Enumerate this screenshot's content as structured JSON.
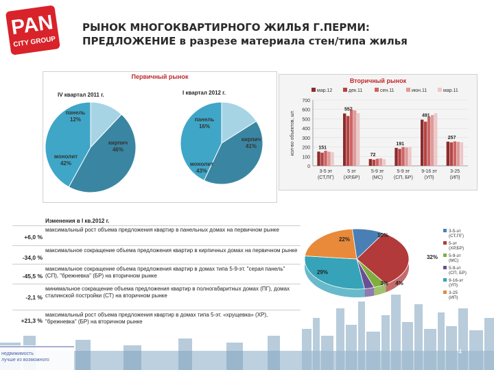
{
  "logo": {
    "line1": "PAN",
    "line2": "CITY GROUP"
  },
  "title": {
    "line1": "РЫНОК МНОГОКВАРТИРНОГО ЖИЛЬЯ Г.ПЕРМИ:",
    "line2": "ПРЕДЛОЖЕНИЕ в разрезе материала стен/типа жилья"
  },
  "primary": {
    "title": "Первичный рынок",
    "colors": {
      "brick": "#3a86a2",
      "monolith": "#3fa6c8",
      "panel": "#a7d4e4"
    }
  },
  "secondary": {
    "title": "Вторичный рынок",
    "ylabel": "кол-во объектов, шт."
  },
  "chart_data": [
    {
      "type": "pie",
      "title": "IV квартал 2011 г.",
      "slices": [
        {
          "label": "панель",
          "value": 12,
          "display": "12%"
        },
        {
          "label": "кирпич",
          "value": 46,
          "display": "46%"
        },
        {
          "label": "монолит",
          "value": 42,
          "display": "42%"
        }
      ]
    },
    {
      "type": "pie",
      "title": "I квартал 2012 г.",
      "slices": [
        {
          "label": "панель",
          "value": 16,
          "display": "16%"
        },
        {
          "label": "кирпич",
          "value": 41,
          "display": "41%"
        },
        {
          "label": "монолит",
          "value": 43,
          "display": "43%"
        }
      ]
    },
    {
      "type": "bar",
      "title": "Вторичный рынок",
      "ylabel": "кол-во объектов, шт.",
      "ylim": [
        0,
        700
      ],
      "yticks": [
        0,
        100,
        200,
        300,
        400,
        500,
        600,
        700
      ],
      "categories": [
        "3-5 эт (СТ,ПГ)",
        "5 эт (ХР,БР)",
        "5-9 эт (МС)",
        "5-9 эт (СП, БР)",
        "9-16 эт (УП)",
        "3-25 (ИП)"
      ],
      "category_lines": [
        [
          "3-5 эт",
          "(СТ,ПГ)"
        ],
        [
          "5 эт",
          "(ХР,БР)"
        ],
        [
          "5-9 эт",
          "(МС)"
        ],
        [
          "5-9 эт",
          "(СП, БР)"
        ],
        [
          "9-16 эт",
          "(УП)"
        ],
        [
          "3-25",
          "(ИП)"
        ]
      ],
      "series": [
        {
          "name": "мар.12",
          "color": "#8e2b2b",
          "values": [
            151,
            557,
            72,
            191,
            491,
            257
          ]
        },
        {
          "name": "дек.11",
          "color": "#b44444",
          "values": [
            140,
            530,
            65,
            180,
            470,
            250
          ]
        },
        {
          "name": "сен.11",
          "color": "#cf6464",
          "values": [
            160,
            600,
            75,
            200,
            520,
            260
          ]
        },
        {
          "name": "июн.11",
          "color": "#de9a9a",
          "values": [
            150,
            590,
            80,
            195,
            540,
            255
          ]
        },
        {
          "name": "мар.11",
          "color": "#edc8c8",
          "values": [
            145,
            560,
            70,
            200,
            560,
            250
          ]
        }
      ],
      "data_labels": [
        "151",
        "557",
        "72",
        "191",
        "491",
        "257"
      ]
    },
    {
      "type": "pie",
      "slices": [
        {
          "label": "3-5-эт (СТ,ПГ)",
          "value": 10,
          "display": "10%",
          "color": "#4a7fb5"
        },
        {
          "label": "5-эт (ХР,БР)",
          "value": 32,
          "display": "32%",
          "color": "#b23a3a"
        },
        {
          "label": "5-9-эт (МС)",
          "value": 4,
          "display": "4%",
          "color": "#7fae3e"
        },
        {
          "label": "5-9-эт (СП, БР)",
          "value": 3,
          "display": "3%",
          "color": "#6a4f94"
        },
        {
          "label": "9-16-эт (УП)",
          "value": 29,
          "display": "29%",
          "color": "#36a3b8"
        },
        {
          "label": "3-25 (ИП)",
          "value": 22,
          "display": "22%",
          "color": "#e88a3a"
        }
      ]
    }
  ],
  "changes": {
    "heading": "Изменения в I кв.2012 г.",
    "rows": [
      {
        "value": "+6,0 %",
        "text": "максимальный рост объема предложения квартир в панельных домах на первичном рынке"
      },
      {
        "value": "-34,0 %",
        "text": "максимальное сокращение объема предложения квартир в кирпичных домах на первичном рынке"
      },
      {
        "value": "-45,5 %",
        "text": "максимальное сокращение объема предложения квартир в домах типа 5-9-эт. \"серая панель\" (СП), \"брежневка\" (БР) на вторичном рынке"
      },
      {
        "value": "-2,1 %",
        "text": "минимальное сокращение объема предложения квартир в полногабаритных домах (ПГ), домах сталинской постройки (СТ) на вторичном рынке"
      },
      {
        "value": "+21,3 %",
        "text": "максимальный рост объема предложения квартир в домах типа 5-эт. «хрущевка» (ХР), \"брежневка\" (БР) на вторичном рынке"
      }
    ]
  },
  "footer": {
    "line1": "недвижимость",
    "line2": "лучше из возможного"
  },
  "page_number": "4"
}
